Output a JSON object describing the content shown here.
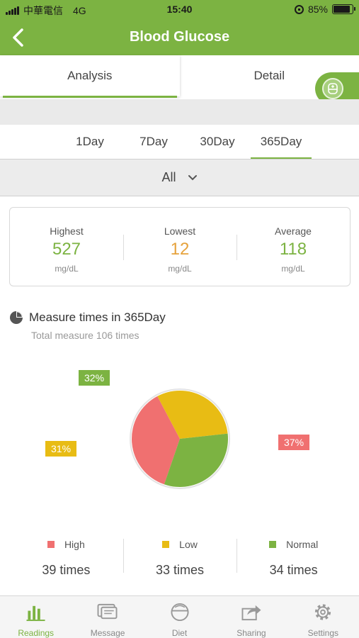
{
  "status_bar": {
    "carrier": "中華電信",
    "network": "4G",
    "time": "15:40",
    "battery": "85%"
  },
  "header": {
    "title": "Blood Glucose"
  },
  "tabs": [
    {
      "label": "Analysis",
      "active": true
    },
    {
      "label": "Detail",
      "active": false
    }
  ],
  "periods": [
    {
      "label": "1Day"
    },
    {
      "label": "7Day"
    },
    {
      "label": "30Day"
    },
    {
      "label": "365Day",
      "active": true
    }
  ],
  "filter": {
    "value": "All"
  },
  "stats": [
    {
      "label": "Highest",
      "value": "527",
      "unit": "mg/dL",
      "color": "#7cb342"
    },
    {
      "label": "Lowest",
      "value": "12",
      "unit": "mg/dL",
      "color": "#e6a23c"
    },
    {
      "label": "Average",
      "value": "118",
      "unit": "mg/dL",
      "color": "#7cb342"
    }
  ],
  "measure": {
    "title": "Measure times in 365Day",
    "subtitle": "Total measure 106 times"
  },
  "chart_data": {
    "type": "pie",
    "slices": [
      {
        "name": "High",
        "percent": 37,
        "label": "37%",
        "count": 39,
        "color": "#f07070"
      },
      {
        "name": "Low",
        "percent": 31,
        "label": "31%",
        "count": 33,
        "color": "#e8bc14"
      },
      {
        "name": "Normal",
        "percent": 32,
        "label": "32%",
        "count": 34,
        "color": "#7cb342"
      }
    ]
  },
  "legend": [
    {
      "name": "High",
      "count": "39 times",
      "color": "#f07070"
    },
    {
      "name": "Low",
      "count": "33 times",
      "color": "#e8bc14"
    },
    {
      "name": "Normal",
      "count": "34 times",
      "color": "#7cb342"
    }
  ],
  "bottom_nav": [
    {
      "label": "Readings",
      "icon": "bar-chart-icon",
      "active": true
    },
    {
      "label": "Message",
      "icon": "message-icon"
    },
    {
      "label": "Diet",
      "icon": "diet-icon"
    },
    {
      "label": "Sharing",
      "icon": "share-icon"
    },
    {
      "label": "Settings",
      "icon": "gear-icon"
    }
  ]
}
